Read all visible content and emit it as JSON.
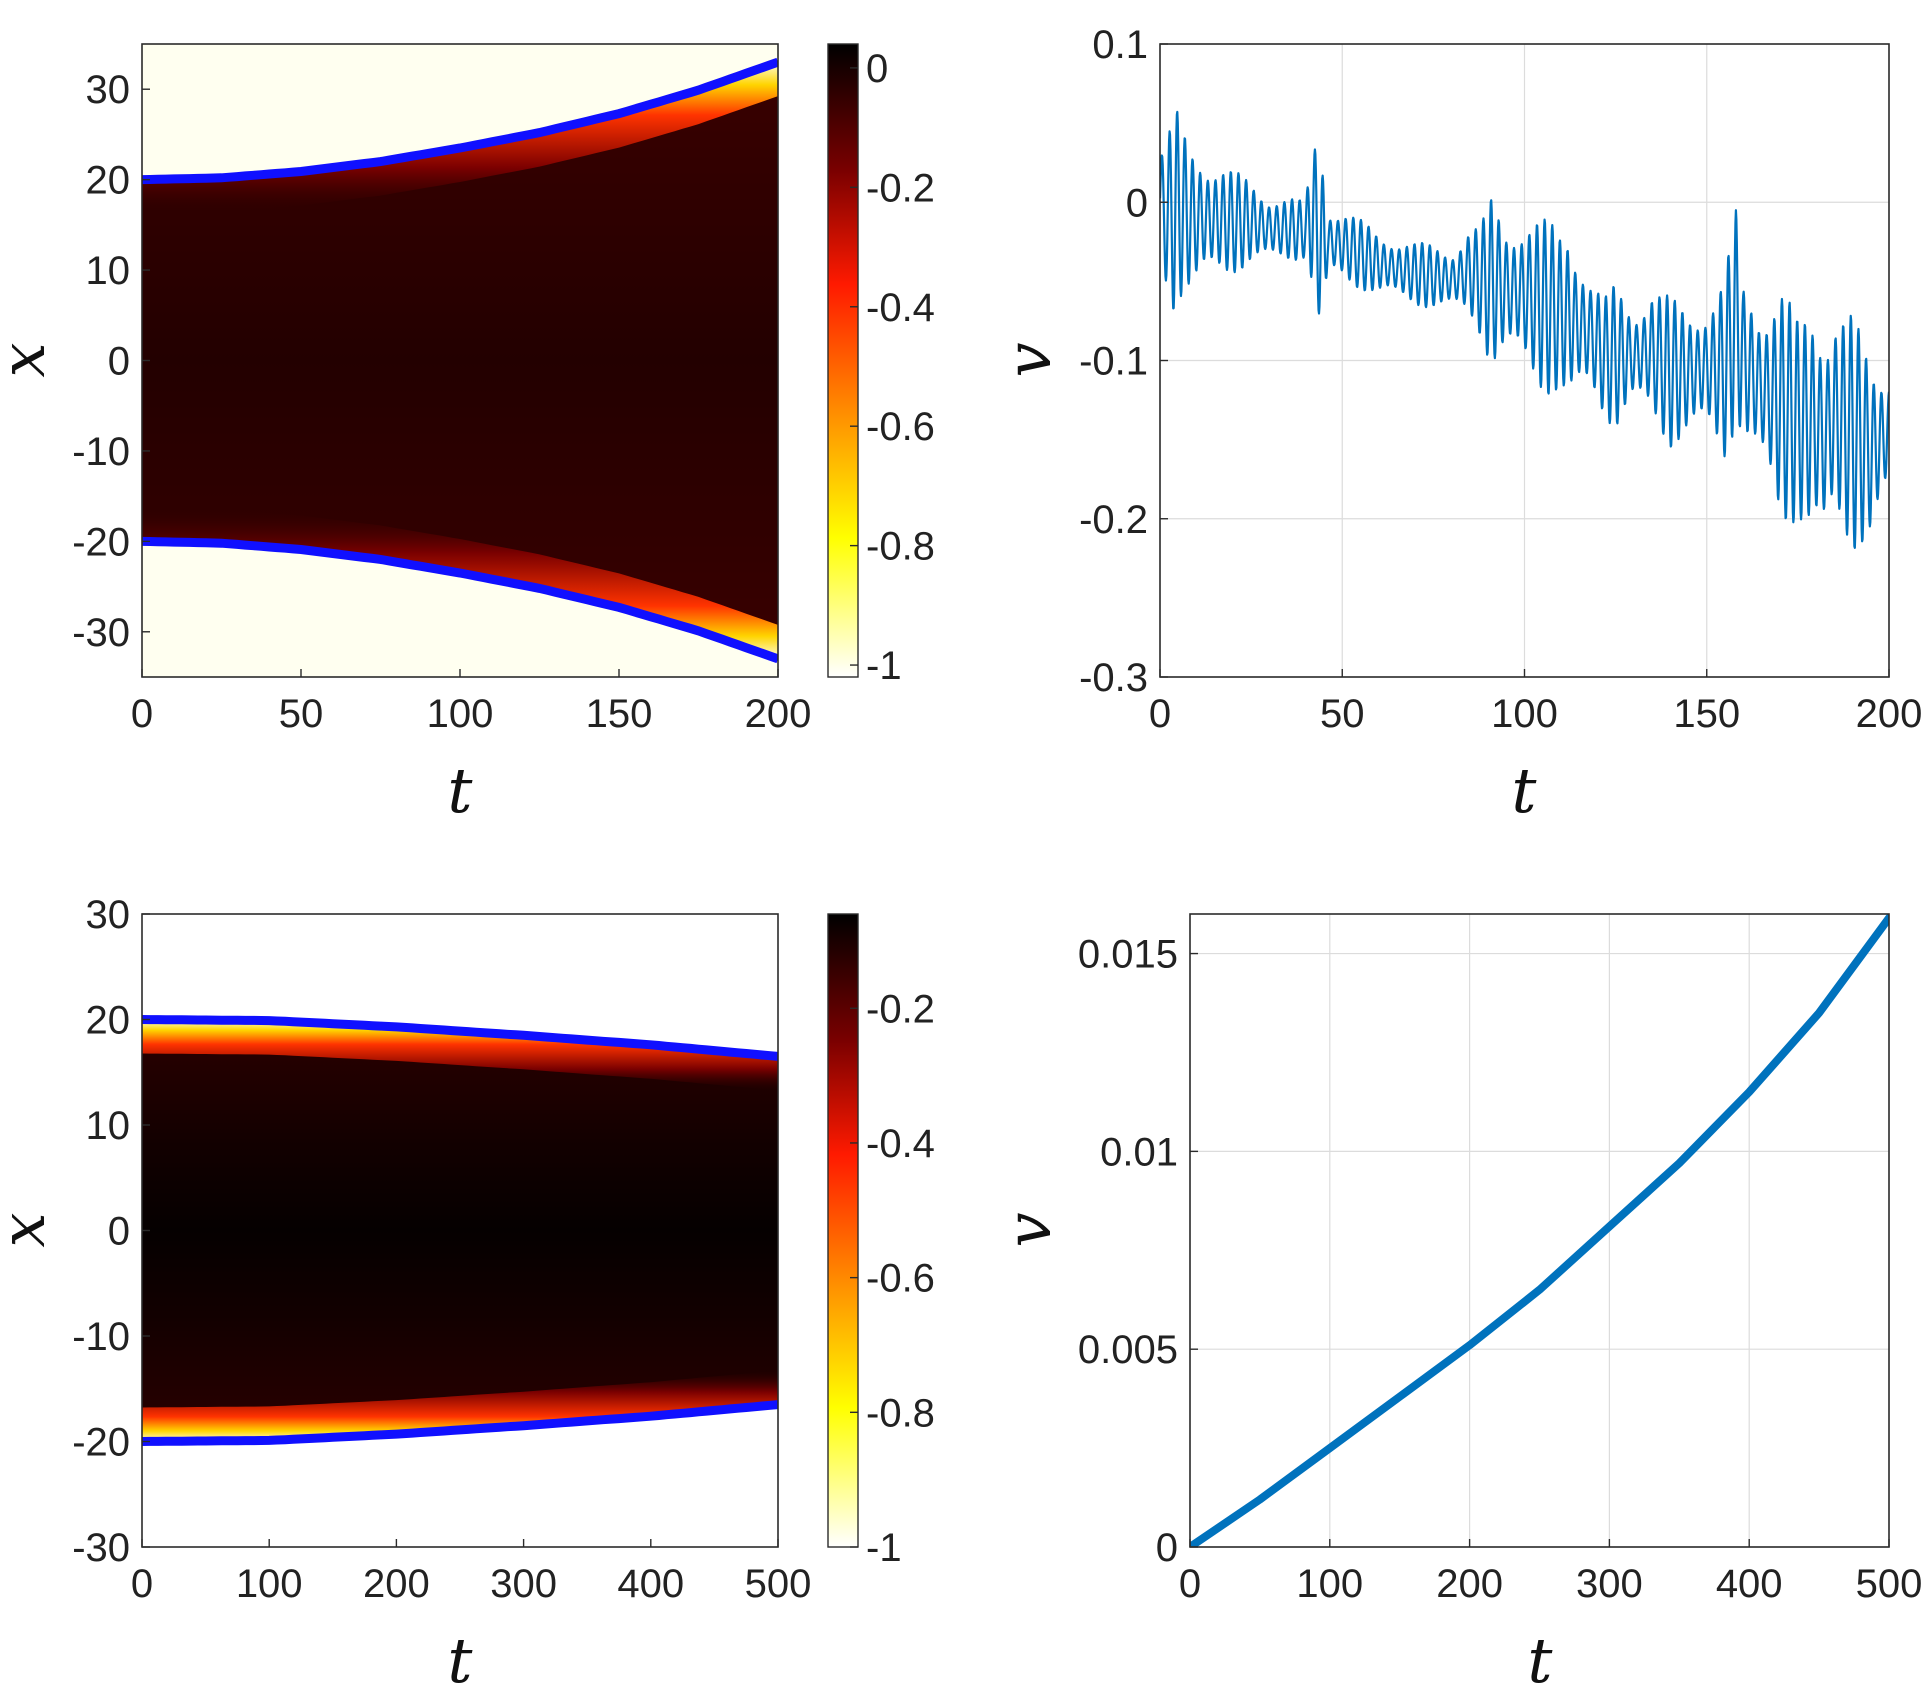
{
  "chart_data": [
    {
      "id": "top-left",
      "type": "heatmap",
      "xlabel": "t",
      "ylabel": "x",
      "xlim": [
        0,
        200
      ],
      "ylim": [
        -35,
        35
      ],
      "xticks": [
        "0",
        "50",
        "100",
        "150",
        "200"
      ],
      "yticks": [
        "30",
        "20",
        "10",
        "0",
        "-10",
        "-20",
        "-30"
      ],
      "colorbar": {
        "range": [
          -1.02,
          0.04
        ],
        "ticks": [
          "0",
          "-0.2",
          "-0.4",
          "-0.6",
          "-0.8",
          "-1"
        ]
      },
      "boundary_upper": {
        "t": [
          0,
          25,
          50,
          75,
          100,
          125,
          150,
          175,
          200
        ],
        "x": [
          20,
          20.2,
          20.9,
          22,
          23.5,
          25.2,
          27.3,
          29.9,
          33
        ]
      },
      "boundary_lower": {
        "t": [
          0,
          25,
          50,
          75,
          100,
          125,
          150,
          175,
          200
        ],
        "x": [
          -20,
          -20.2,
          -20.9,
          -22,
          -23.5,
          -25.2,
          -27.3,
          -29.9,
          -33
        ]
      }
    },
    {
      "id": "top-right",
      "type": "line",
      "xlabel": "t",
      "ylabel": "v",
      "xlim": [
        0,
        200
      ],
      "ylim": [
        -0.3,
        0.1
      ],
      "xticks": [
        "0",
        "50",
        "100",
        "150",
        "200"
      ],
      "yticks": [
        "0.1",
        "0",
        "-0.1",
        "-0.2",
        "-0.3"
      ],
      "line_color": "#0072BD",
      "series": [
        {
          "t": [
            0,
            2,
            4,
            6,
            8,
            10,
            15,
            20,
            25,
            30,
            35,
            40,
            42,
            43,
            44,
            45,
            46,
            50,
            60,
            70,
            80,
            85,
            88,
            91,
            95,
            100,
            105,
            110,
            112,
            118,
            122,
            125,
            130,
            135,
            140,
            145,
            150,
            155,
            158,
            160,
            165,
            170,
            175,
            180,
            182,
            185,
            190,
            195,
            200
          ],
          "v_upper": [
            0.035,
            0.04,
            0.062,
            0.05,
            0.04,
            0.04,
            0.028,
            0.02,
            0.015,
            0.007,
            0.004,
            0.0,
            0.048,
            0.045,
            0.047,
            0.04,
            0.0,
            -0.004,
            -0.018,
            -0.025,
            -0.028,
            -0.013,
            -0.015,
            0.005,
            -0.01,
            -0.005,
            -0.01,
            -0.015,
            -0.008,
            -0.045,
            -0.06,
            -0.05,
            -0.065,
            -0.05,
            -0.06,
            -0.065,
            -0.06,
            -0.045,
            -0.004,
            -0.05,
            -0.06,
            -0.045,
            -0.075,
            -0.06,
            -0.07,
            -0.06,
            -0.07,
            -0.1,
            -0.1
          ],
          "v_lower": [
            -0.03,
            -0.06,
            -0.07,
            -0.06,
            -0.06,
            -0.06,
            -0.05,
            -0.045,
            -0.04,
            -0.04,
            -0.038,
            -0.035,
            -0.06,
            -0.08,
            -0.1,
            -0.09,
            -0.05,
            -0.05,
            -0.06,
            -0.065,
            -0.07,
            -0.075,
            -0.085,
            -0.105,
            -0.1,
            -0.11,
            -0.12,
            -0.125,
            -0.14,
            -0.12,
            -0.135,
            -0.145,
            -0.13,
            -0.14,
            -0.155,
            -0.15,
            -0.15,
            -0.165,
            -0.14,
            -0.15,
            -0.175,
            -0.21,
            -0.2,
            -0.22,
            -0.23,
            -0.21,
            -0.22,
            -0.215,
            -0.19
          ]
        }
      ]
    },
    {
      "id": "bottom-left",
      "type": "heatmap",
      "xlabel": "t",
      "ylabel": "x",
      "xlim": [
        0,
        500
      ],
      "ylim": [
        -30,
        30
      ],
      "xticks": [
        "0",
        "100",
        "200",
        "300",
        "400",
        "500"
      ],
      "yticks": [
        "30",
        "20",
        "10",
        "0",
        "-10",
        "-20",
        "-30"
      ],
      "colorbar": {
        "range": [
          -1.0,
          -0.06
        ],
        "ticks": [
          "-0.2",
          "-0.4",
          "-0.6",
          "-0.8",
          "-1"
        ]
      },
      "boundary_upper": {
        "t": [
          0,
          100,
          200,
          300,
          400,
          500
        ],
        "x": [
          20,
          19.9,
          19.3,
          18.5,
          17.6,
          16.5
        ]
      },
      "boundary_lower": {
        "t": [
          0,
          100,
          200,
          300,
          400,
          500
        ],
        "x": [
          -20,
          -19.9,
          -19.3,
          -18.5,
          -17.6,
          -16.5
        ]
      }
    },
    {
      "id": "bottom-right",
      "type": "line",
      "xlabel": "t",
      "ylabel": "v",
      "xlim": [
        0,
        500
      ],
      "ylim": [
        0,
        0.016
      ],
      "xticks": [
        "0",
        "100",
        "200",
        "300",
        "400",
        "500"
      ],
      "yticks": [
        "0.015",
        "0.01",
        "0.005",
        "0"
      ],
      "line_color": "#0072BD",
      "series": [
        {
          "t": [
            0,
            50,
            100,
            150,
            200,
            250,
            300,
            350,
            400,
            450,
            500
          ],
          "v": [
            0,
            0.0012,
            0.0025,
            0.0038,
            0.0051,
            0.0065,
            0.0081,
            0.0097,
            0.0115,
            0.0135,
            0.0159
          ]
        }
      ]
    }
  ]
}
